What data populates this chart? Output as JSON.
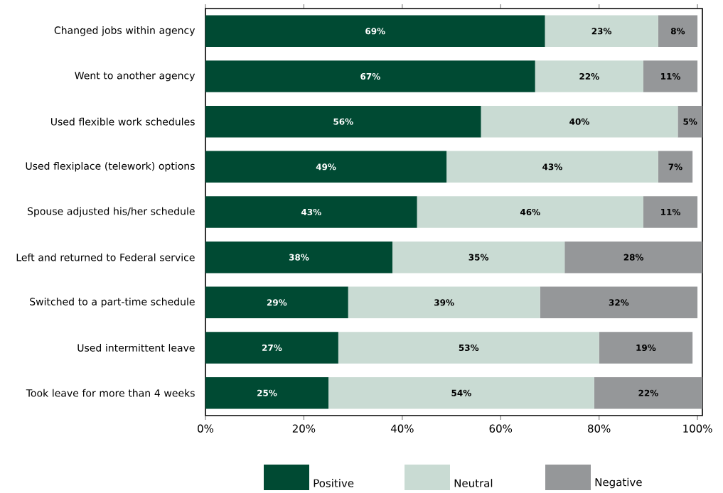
{
  "chart_data": {
    "type": "bar",
    "orientation": "horizontal",
    "stacked": true,
    "legend": "bottom",
    "categories": [
      "Changed jobs within agency",
      "Went to another agency",
      "Used flexible work schedules",
      "Used flexiplace (telework) options",
      "Spouse adjusted his/her schedule",
      "Left and returned to Federal service",
      "Switched to a part-time schedule",
      "Used intermittent leave",
      "Took leave for more than 4 weeks"
    ],
    "series": [
      {
        "name": "Positive",
        "color": "#004a33",
        "values": [
          69,
          67,
          56,
          49,
          43,
          38,
          29,
          27,
          25
        ],
        "value_labels": [
          "69%",
          "67%",
          "56%",
          "49%",
          "43%",
          "38%",
          "29%",
          "27%",
          "25%"
        ]
      },
      {
        "name": "Neutral",
        "color": "#c9dbd3",
        "values": [
          23,
          22,
          40,
          43,
          46,
          35,
          39,
          53,
          54
        ],
        "value_labels": [
          "23%",
          "22%",
          "40%",
          "43%",
          "46%",
          "35%",
          "39%",
          "53%",
          "54%"
        ]
      },
      {
        "name": "Negative",
        "color": "#959799",
        "values": [
          8,
          11,
          5,
          7,
          11,
          28,
          32,
          19,
          22
        ],
        "value_labels": [
          "8%",
          "11%",
          "5%",
          "7%",
          "11%",
          "28%",
          "32%",
          "19%",
          "22%"
        ]
      }
    ],
    "xlim": [
      0,
      101
    ],
    "xticks": [
      {
        "value": 0,
        "label": "0%"
      },
      {
        "value": 20,
        "label": "20%"
      },
      {
        "value": 40,
        "label": "40%"
      },
      {
        "value": 60,
        "label": "60%"
      },
      {
        "value": 80,
        "label": "80%"
      },
      {
        "value": 100,
        "label": "100%"
      }
    ]
  }
}
